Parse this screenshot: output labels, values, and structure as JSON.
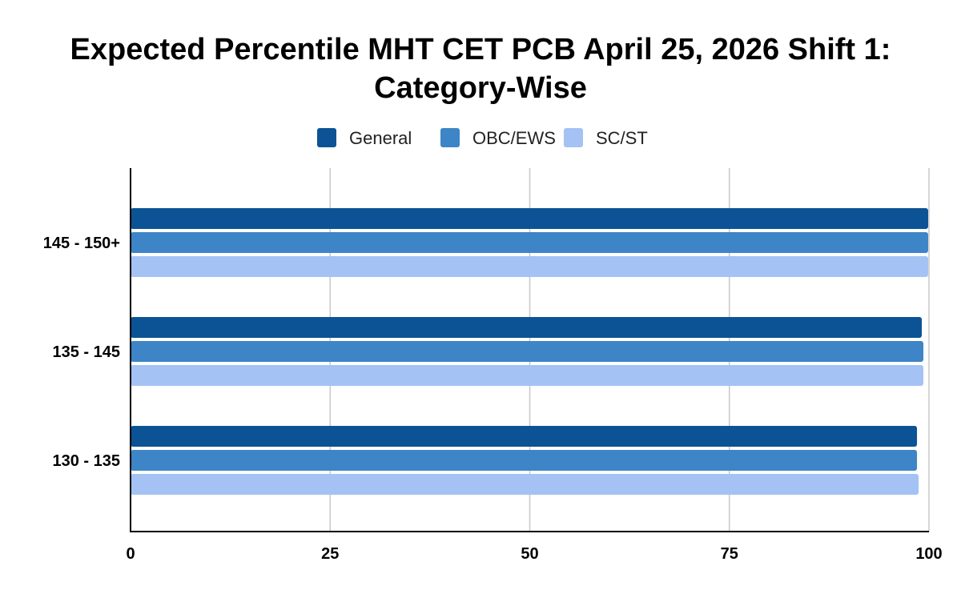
{
  "chart_data": {
    "type": "bar",
    "orientation": "horizontal",
    "title_lines": [
      "Expected  Percentile MHT CET PCB April 25, 2026 Shift 1:",
      "Category-Wise"
    ],
    "categories": [
      "145 - 150+",
      "135 - 145",
      "130 - 135"
    ],
    "series": [
      {
        "name": "General",
        "color": "#0b5394",
        "values": [
          99.9,
          99.1,
          98.5
        ]
      },
      {
        "name": "OBC/EWS",
        "color": "#3d85c6",
        "values": [
          99.9,
          99.3,
          98.5
        ]
      },
      {
        "name": "SC/ST",
        "color": "#a4c2f4",
        "values": [
          99.9,
          99.3,
          98.7
        ]
      }
    ],
    "xlim": [
      0,
      100
    ],
    "xticks": [
      "0",
      "25",
      "50",
      "75",
      "100"
    ],
    "xlabel": "",
    "ylabel": "",
    "grid": "vertical",
    "legend_position": "top-center"
  }
}
